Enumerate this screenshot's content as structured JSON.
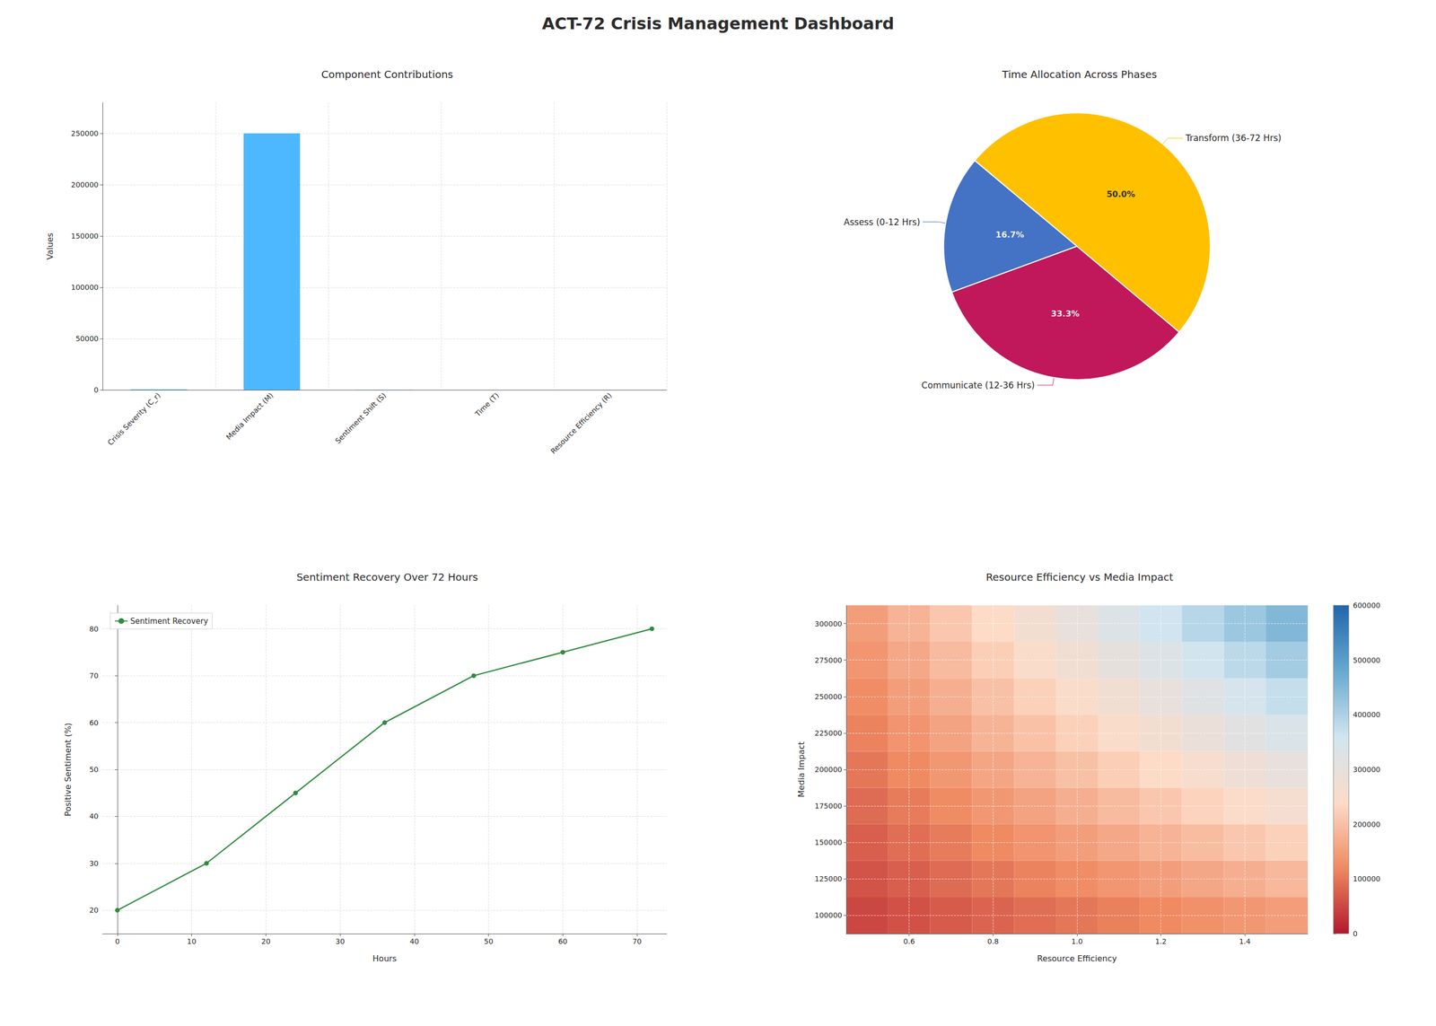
{
  "title": "ACT-72 Crisis Management Dashboard",
  "chart_data": [
    {
      "type": "bar",
      "title": "Component Contributions",
      "categories": [
        "Crisis Severity (C_r)",
        "Media Impact (M)",
        "Sentiment Shift (S)",
        "Time (T)",
        "Resource Efficiency (R)"
      ],
      "values": [
        500,
        250000,
        100,
        50,
        10
      ],
      "color": "#4db8ff",
      "ylabel": "Values",
      "ylim": [
        0,
        280000
      ],
      "yticks": [
        0,
        50000,
        100000,
        150000,
        200000,
        250000
      ],
      "grid": true
    },
    {
      "type": "pie",
      "title": "Time Allocation Across Phases",
      "categories": [
        "Assess (0-12 Hrs)",
        "Communicate (12-36 Hrs)",
        "Transform (36-72 Hrs)"
      ],
      "values": [
        16.7,
        33.3,
        50.0
      ],
      "value_labels": [
        "16.7%",
        "33.3%",
        "50.0%"
      ],
      "colors": [
        "#4472c4",
        "#c0185a",
        "#ffc000"
      ],
      "data_labels": true
    },
    {
      "type": "line",
      "title": "Sentiment Recovery Over 72 Hours",
      "xlabel": "Hours",
      "ylabel": "Positive Sentiment (%)",
      "x": [
        0,
        12,
        24,
        36,
        48,
        60,
        72
      ],
      "series": [
        {
          "name": "Sentiment Recovery",
          "color": "#2e8b3e",
          "marker": "circle",
          "values": [
            20,
            30,
            45,
            60,
            70,
            75,
            80
          ]
        }
      ],
      "xlim": [
        -2,
        74
      ],
      "xticks": [
        0,
        10,
        20,
        30,
        40,
        50,
        60,
        70
      ],
      "ylim": [
        15,
        85
      ],
      "yticks": [
        20,
        30,
        40,
        50,
        60,
        70,
        80
      ],
      "grid": true,
      "legend": "upper left"
    },
    {
      "type": "heatmap",
      "title": "Resource Efficiency vs Media Impact",
      "xlabel": "Resource Efficiency",
      "ylabel": "Media Impact",
      "x": [
        0.5,
        0.6,
        0.7,
        0.8,
        0.9,
        1.0,
        1.1,
        1.2,
        1.3,
        1.4,
        1.5
      ],
      "y": [
        100000,
        125000,
        150000,
        175000,
        200000,
        225000,
        250000,
        275000,
        300000
      ],
      "values": [
        [
          50000,
          60000,
          70000,
          80000,
          90000,
          100000,
          110000,
          120000,
          130000,
          140000,
          150000
        ],
        [
          62500,
          75000,
          87500,
          100000,
          112500,
          125000,
          137500,
          150000,
          162500,
          175000,
          187500
        ],
        [
          75000,
          90000,
          105000,
          120000,
          135000,
          150000,
          165000,
          180000,
          195000,
          210000,
          225000
        ],
        [
          87500,
          105000,
          122500,
          140000,
          157500,
          175000,
          192500,
          210000,
          227500,
          245000,
          262500
        ],
        [
          100000,
          120000,
          140000,
          160000,
          180000,
          200000,
          220000,
          240000,
          260000,
          280000,
          300000
        ],
        [
          112500,
          135000,
          157500,
          180000,
          202500,
          225000,
          247500,
          270000,
          292500,
          315000,
          337500
        ],
        [
          125000,
          150000,
          175000,
          200000,
          225000,
          250000,
          275000,
          300000,
          325000,
          350000,
          375000
        ],
        [
          137500,
          165000,
          192500,
          220000,
          247500,
          275000,
          302500,
          330000,
          357500,
          385000,
          412500
        ],
        [
          150000,
          180000,
          210000,
          240000,
          270000,
          300000,
          330000,
          360000,
          390000,
          420000,
          450000
        ]
      ],
      "xlim": [
        0.45,
        1.55
      ],
      "xticks": [
        0.6,
        0.8,
        {
          "value": 1.0,
          "label": "1.0"
        },
        1.2,
        1.4
      ],
      "ylim": [
        87500,
        312500
      ],
      "yticks": [
        100000,
        125000,
        150000,
        175000,
        200000,
        225000,
        250000,
        275000,
        300000
      ],
      "cbar_lim": [
        0,
        600000
      ],
      "cbar_ticks": [
        0,
        100000,
        200000,
        300000,
        400000,
        500000,
        600000
      ],
      "grid": true
    }
  ]
}
